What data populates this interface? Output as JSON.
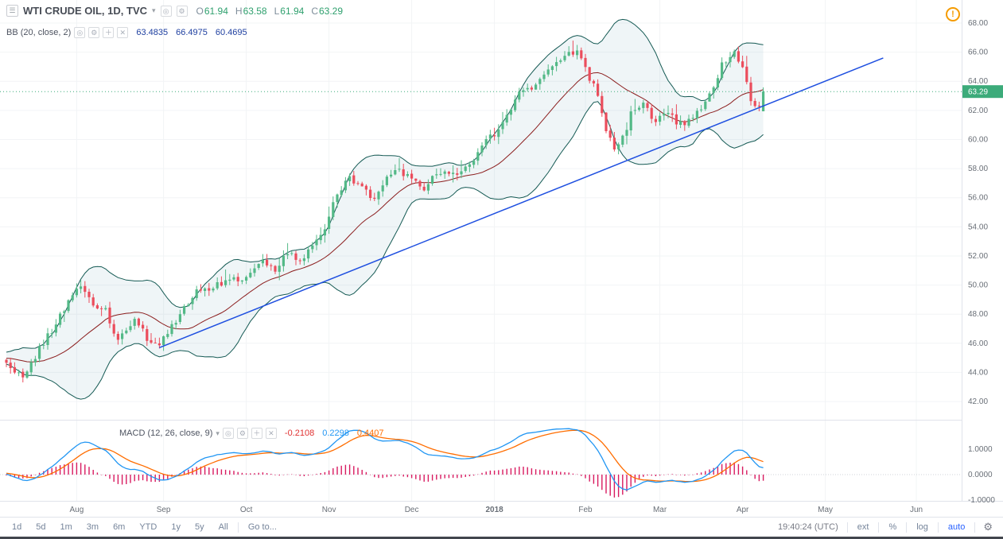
{
  "icons": {
    "menu": "☰",
    "dropdown": "▾",
    "eye": "◎",
    "gear": "⚙",
    "plus": "＋",
    "close": "✕",
    "alert": "!"
  },
  "header": {
    "symbol_title": "WTI CRUDE OIL, 1D, TVC",
    "ohlc": {
      "open_label": "O",
      "open": "61.94",
      "high_label": "H",
      "high": "63.58",
      "low_label": "L",
      "low": "61.94",
      "close_label": "C",
      "close": "63.29"
    }
  },
  "indicators": {
    "bb": {
      "label": "BB (20, close, 2)",
      "basis": "63.4835",
      "upper": "66.4975",
      "lower": "60.4695"
    },
    "macd": {
      "label": "MACD (12, 26, close, 9)",
      "histogram": "-0.2108",
      "macd": "0.2298",
      "signal": "0.4407"
    }
  },
  "price_axis": {
    "ticks": [
      "68.00",
      "66.00",
      "64.00",
      "62.00",
      "60.00",
      "58.00",
      "56.00",
      "54.00",
      "52.00",
      "50.00",
      "48.00",
      "46.00",
      "44.00",
      "42.00"
    ],
    "last_price": "63.29"
  },
  "macd_axis": {
    "ticks": [
      "1.0000",
      "0.0000",
      "-1.0000"
    ]
  },
  "time_axis": [
    {
      "label": "Aug",
      "index": 17
    },
    {
      "label": "Sep",
      "index": 38
    },
    {
      "label": "Oct",
      "index": 58
    },
    {
      "label": "Nov",
      "index": 78
    },
    {
      "label": "Dec",
      "index": 98
    },
    {
      "label": "2018",
      "index": 118,
      "year": true
    },
    {
      "label": "Feb",
      "index": 140
    },
    {
      "label": "Mar",
      "index": 158
    },
    {
      "label": "Apr",
      "index": 178
    },
    {
      "label": "May",
      "index": 198
    },
    {
      "label": "Jun",
      "index": 220
    }
  ],
  "toolbar": {
    "ranges": [
      "1d",
      "5d",
      "1m",
      "3m",
      "6m",
      "YTD",
      "1y",
      "5y",
      "All"
    ],
    "goto_label": "Go to...",
    "clock": "19:40:24 (UTC)",
    "ext_label": "ext",
    "percent_label": "%",
    "log_label": "log",
    "auto_label": "auto"
  },
  "chart_data": {
    "type": "candlestick",
    "title": "WTI CRUDE OIL, 1D, TVC",
    "interval": "1D",
    "exchange": "TVC",
    "price_axis_range": [
      42,
      68
    ],
    "macd_axis_range": [
      -1,
      1
    ],
    "last_candle": {
      "open": 61.94,
      "high": 63.58,
      "low": 61.94,
      "close": 63.29
    },
    "candle_count": 184,
    "close_anchors": [
      [
        0,
        44.6
      ],
      [
        4,
        43.7
      ],
      [
        8,
        45.6
      ],
      [
        12,
        47.4
      ],
      [
        16,
        49.3
      ],
      [
        18,
        49.9
      ],
      [
        21,
        48.8
      ],
      [
        24,
        48.2
      ],
      [
        27,
        46.2
      ],
      [
        29,
        46.9
      ],
      [
        31,
        47.8
      ],
      [
        34,
        46.3
      ],
      [
        37,
        45.8
      ],
      [
        40,
        47.1
      ],
      [
        43,
        48.4
      ],
      [
        46,
        49.6
      ],
      [
        50,
        49.9
      ],
      [
        54,
        50.3
      ],
      [
        58,
        50.6
      ],
      [
        62,
        51.5
      ],
      [
        65,
        50.9
      ],
      [
        68,
        52.2
      ],
      [
        71,
        51.6
      ],
      [
        74,
        52.6
      ],
      [
        77,
        54.0
      ],
      [
        80,
        56.2
      ],
      [
        83,
        57.3
      ],
      [
        86,
        57.0
      ],
      [
        89,
        55.7
      ],
      [
        92,
        57.2
      ],
      [
        95,
        57.9
      ],
      [
        98,
        57.3
      ],
      [
        101,
        56.6
      ],
      [
        104,
        57.7
      ],
      [
        108,
        57.5
      ],
      [
        112,
        58.3
      ],
      [
        116,
        59.9
      ],
      [
        118,
        60.3
      ],
      [
        121,
        61.6
      ],
      [
        124,
        63.2
      ],
      [
        127,
        63.6
      ],
      [
        130,
        64.3
      ],
      [
        133,
        65.3
      ],
      [
        136,
        66.2
      ],
      [
        139,
        65.8
      ],
      [
        141,
        64.2
      ],
      [
        143,
        63.1
      ],
      [
        145,
        60.8
      ],
      [
        147,
        59.2
      ],
      [
        149,
        60.1
      ],
      [
        151,
        61.7
      ],
      [
        154,
        62.6
      ],
      [
        157,
        61.2
      ],
      [
        160,
        62.0
      ],
      [
        162,
        60.9
      ],
      [
        165,
        61.3
      ],
      [
        168,
        62.1
      ],
      [
        171,
        63.6
      ],
      [
        173,
        65.2
      ],
      [
        176,
        65.9
      ],
      [
        178,
        64.9
      ],
      [
        180,
        62.5
      ],
      [
        182,
        62.2
      ],
      [
        183,
        63.29
      ]
    ],
    "bollinger": {
      "length": 20,
      "source": "close",
      "stddev": 2,
      "last_basis": 63.4835,
      "last_upper": 66.4975,
      "last_lower": 60.4695
    },
    "macd": {
      "fast": 12,
      "slow": 26,
      "source": "close",
      "smoothing": 9,
      "last_histogram": -0.2108,
      "last_macd": 0.2298,
      "last_signal": 0.4407
    },
    "trendline": {
      "from_index": 37,
      "from_price": 45.7,
      "to_index": 212,
      "to_price": 65.6
    },
    "colors": {
      "up": "#53b987",
      "down": "#eb4d5c",
      "bb_band": "#155a54",
      "bb_basis": "#8b1d1d",
      "bb_fill": "rgba(96,156,180,0.10)",
      "trend": "#1e4fe0",
      "macd_line": "#2196f3",
      "signal_line": "#ff6d00",
      "histogram": "#d81b60",
      "last_price_bg": "#3cab7a",
      "grid": "#f2f4f6",
      "axis_text": "#696f77",
      "separator": "#e0e3eb"
    }
  }
}
